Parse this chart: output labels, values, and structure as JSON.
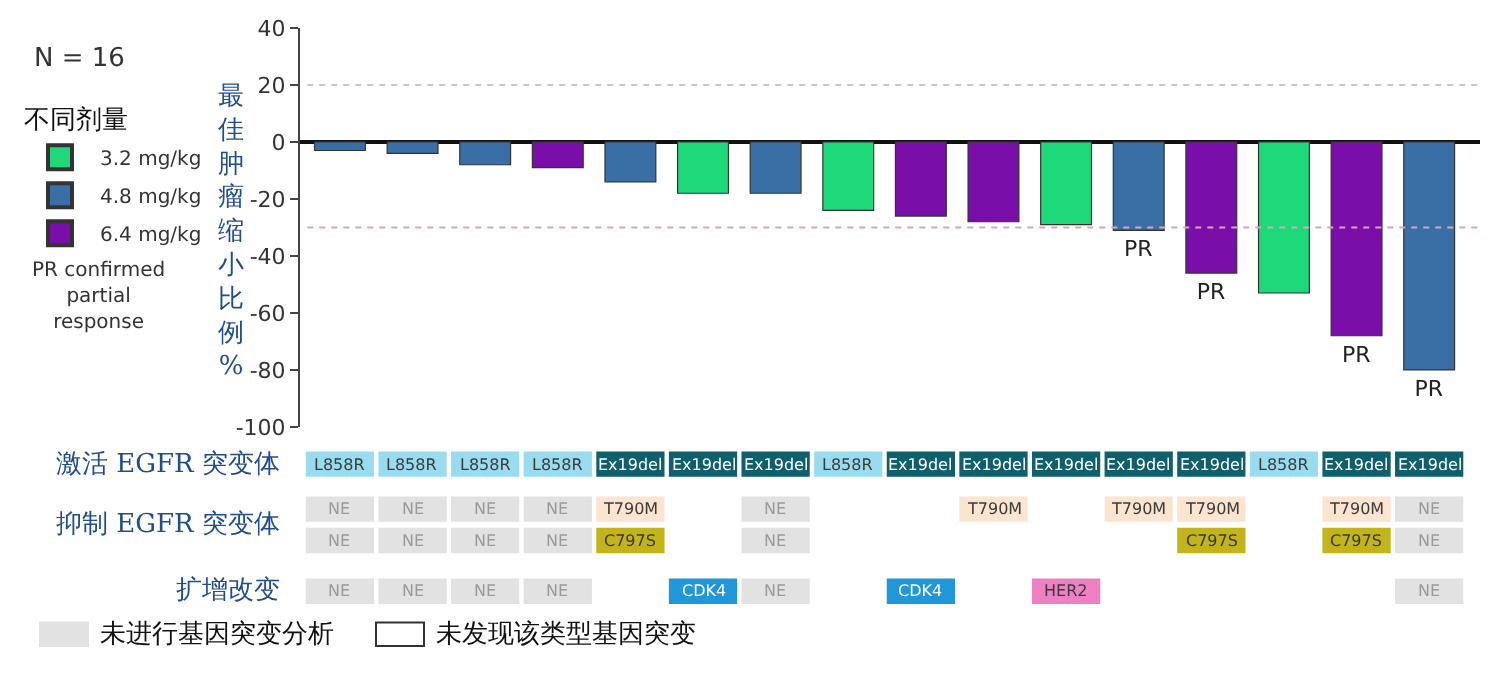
{
  "chart_data": [
    {
      "type": "bar",
      "categories": [
        null,
        null,
        null,
        null,
        null,
        null,
        null,
        null,
        null,
        null,
        null,
        null,
        null,
        null,
        null,
        null
      ],
      "series": [
        {
          "name": "3.2 mg/kg",
          "color": "#1ed97a",
          "values": [
            null,
            null,
            null,
            null,
            null,
            -18,
            null,
            -24,
            null,
            null,
            -29,
            null,
            null,
            -53,
            null,
            null
          ],
          "value_labels": [
            null,
            null,
            null,
            null,
            null,
            null,
            null,
            null,
            null,
            null,
            null,
            null,
            null,
            null,
            null,
            null
          ]
        },
        {
          "name": "4.8 mg/kg",
          "color": "#3a6fa6",
          "values": [
            -3,
            -4,
            -8,
            null,
            -14,
            null,
            -18,
            null,
            null,
            null,
            null,
            -31,
            null,
            null,
            null,
            -80
          ],
          "value_labels": [
            null,
            null,
            null,
            null,
            null,
            null,
            null,
            null,
            null,
            null,
            null,
            "PR",
            null,
            null,
            null,
            "PR"
          ]
        },
        {
          "name": "6.4 mg/kg",
          "color": "#7a0ea8",
          "values": [
            null,
            null,
            null,
            -9,
            null,
            null,
            null,
            null,
            -26,
            -28,
            null,
            null,
            -46,
            null,
            -68,
            null
          ],
          "value_labels": [
            null,
            null,
            null,
            null,
            null,
            null,
            null,
            null,
            null,
            null,
            null,
            null,
            "PR",
            null,
            "PR",
            null
          ]
        }
      ],
      "ylabel": "最佳肿瘤缩小比例 %",
      "legend_title": "不同剂量",
      "legend": "left",
      "ylim": [
        -100,
        40
      ],
      "yticks": [
        -100,
        -80,
        -60,
        -40,
        -20,
        0,
        20,
        40
      ],
      "grid": false,
      "ref_lines": [
        {
          "axis": "y",
          "value": 20,
          "color": "#c9c9c9",
          "line_style": "dotted"
        },
        {
          "axis": "y",
          "value": -30,
          "color": "#d9a6b5",
          "line_style": "dotted"
        }
      ],
      "annotations": [
        "N = 16",
        "PR confirmed partial response"
      ]
    },
    {
      "type": "other",
      "categories": [
        null,
        null,
        null,
        null,
        null,
        null,
        null,
        null,
        null,
        null,
        null,
        null,
        null,
        null,
        null,
        null
      ],
      "y_categories": [
        "激活 EGFR 突变体",
        "抑制 EGFR 突变体",
        null,
        "扩增改变"
      ],
      "cell_labels": [
        [
          "L858R",
          "L858R",
          "L858R",
          "L858R",
          "Ex19del",
          "Ex19del",
          "Ex19del",
          "L858R",
          "Ex19del",
          "Ex19del",
          "Ex19del",
          "Ex19del",
          "Ex19del",
          "L858R",
          "Ex19del",
          "Ex19del"
        ],
        [
          "NE",
          "NE",
          "NE",
          "NE",
          "T790M",
          null,
          "NE",
          null,
          null,
          "T790M",
          null,
          "T790M",
          "T790M",
          null,
          "T790M",
          "NE"
        ],
        [
          "NE",
          "NE",
          "NE",
          "NE",
          "C797S",
          null,
          "NE",
          null,
          null,
          null,
          null,
          null,
          "C797S",
          null,
          "C797S",
          "NE"
        ],
        [
          "NE",
          "NE",
          "NE",
          "NE",
          null,
          "CDK4",
          "NE",
          null,
          "CDK4",
          null,
          "HER2",
          null,
          null,
          null,
          null,
          "NE"
        ]
      ],
      "colors": [
        [
          "#9adcef",
          "#9adcef",
          "#9adcef",
          "#9adcef",
          "#0f5f6c",
          "#0f5f6c",
          "#0f5f6c",
          "#9adcef",
          "#0f5f6c",
          "#0f5f6c",
          "#0f5f6c",
          "#0f5f6c",
          "#0f5f6c",
          "#9adcef",
          "#0f5f6c",
          "#0f5f6c"
        ],
        [
          "#e2e2e2",
          "#e2e2e2",
          "#e2e2e2",
          "#e2e2e2",
          "#fbe4d0",
          null,
          "#e2e2e2",
          null,
          null,
          "#fbe4d0",
          null,
          "#fbe4d0",
          "#fbe4d0",
          null,
          "#fbe4d0",
          "#e2e2e2"
        ],
        [
          "#e2e2e2",
          "#e2e2e2",
          "#e2e2e2",
          "#e2e2e2",
          "#c2b41a",
          null,
          "#e2e2e2",
          null,
          null,
          null,
          null,
          null,
          "#c2b41a",
          null,
          "#c2b41a",
          "#e2e2e2"
        ],
        [
          "#e2e2e2",
          "#e2e2e2",
          "#e2e2e2",
          "#e2e2e2",
          null,
          "#2196d8",
          "#e2e2e2",
          null,
          "#2196d8",
          null,
          "#ee80c2",
          null,
          null,
          null,
          null,
          "#e2e2e2"
        ]
      ],
      "annotations": [
        "未进行基因突变分析",
        "未发现该类型基因突变"
      ]
    }
  ]
}
